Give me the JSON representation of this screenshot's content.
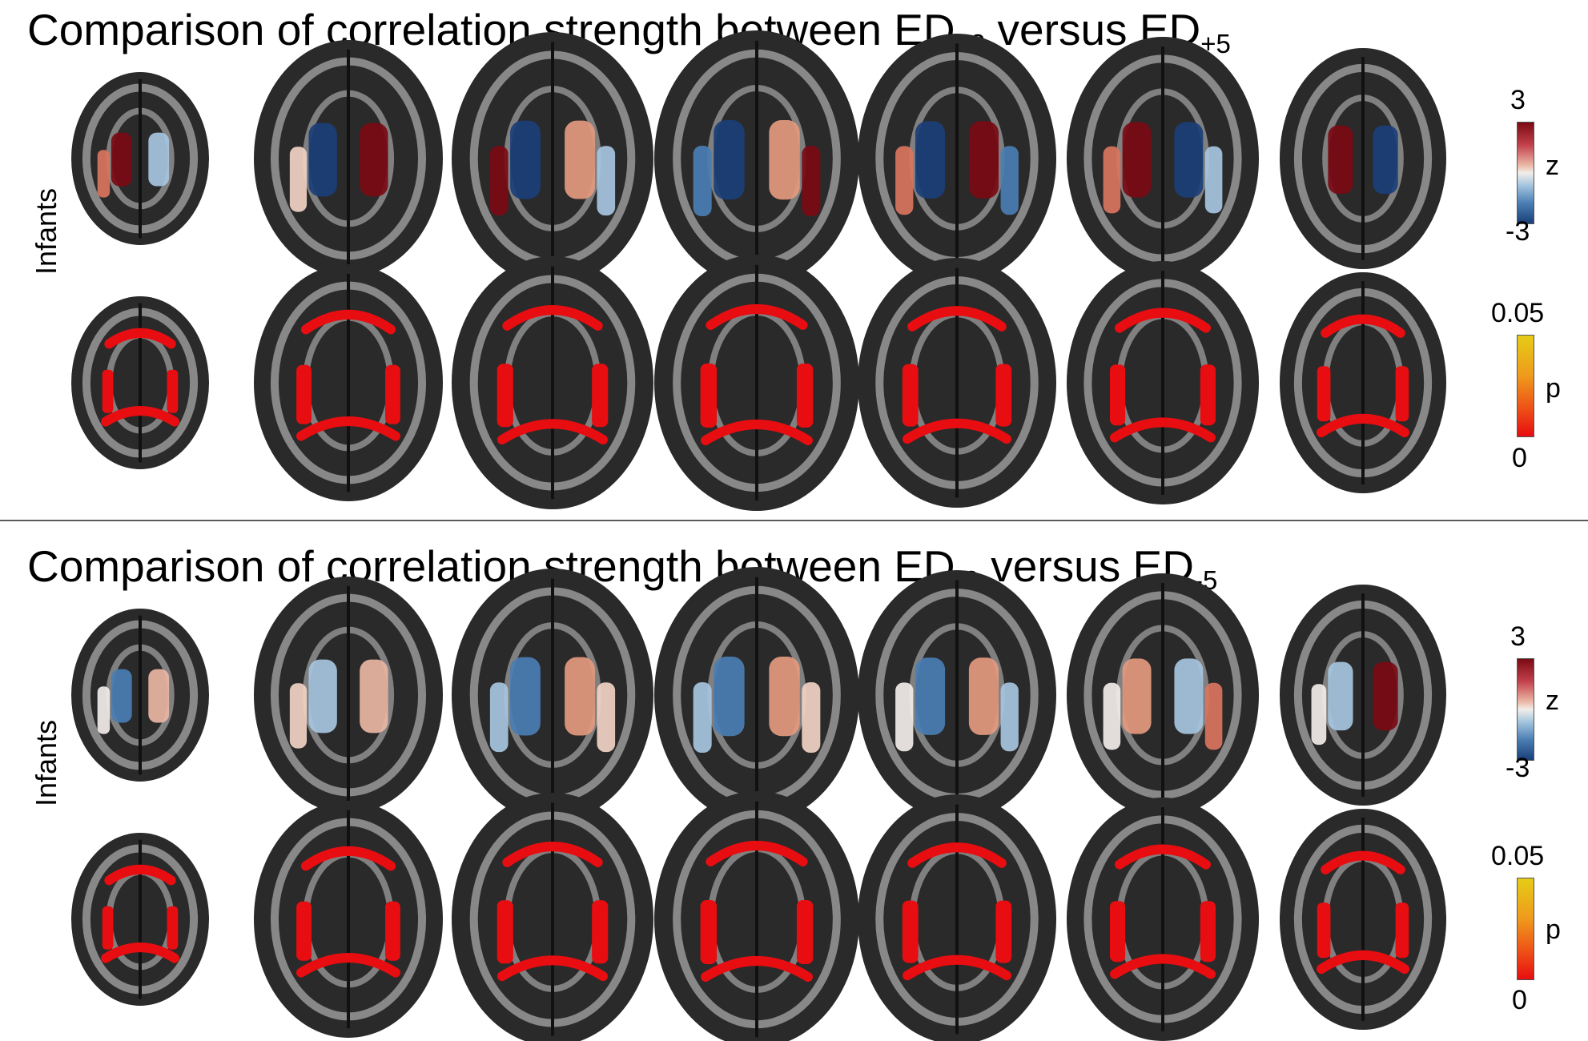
{
  "panels": [
    {
      "title": {
        "prefix": "Comparison of correlation strength between ED",
        "sub1": "+3",
        "middle": " versus ED",
        "sub2": "+5"
      },
      "row_label": "Infants",
      "z_scale": {
        "max": "3",
        "label": "z",
        "min": "-3"
      },
      "p_scale": {
        "max": "0.05",
        "label": "p",
        "min": "0"
      }
    },
    {
      "title": {
        "prefix": "Comparison of correlation strength between ED",
        "sub1": "-3",
        "middle": " versus ED",
        "sub2": "-5"
      },
      "row_label": "Infants",
      "z_scale": {
        "max": "3",
        "label": "z",
        "min": "-3"
      },
      "p_scale": {
        "max": "0.05",
        "label": "p",
        "min": "0"
      }
    }
  ],
  "colors": {
    "z_high": "#7a0a14",
    "z_mid": "#f2ede9",
    "z_low": "#1a3f78",
    "p_high": "#e6cc16",
    "p_low": "#e80d10",
    "brain_bg": "#2a2a2a",
    "white_matter": "#d6d6d6"
  },
  "slices": [
    {
      "rows": [
        {
          "kind": "z",
          "blobs": [
            [
              "#7a0a14",
              "#a6c6df",
              "#d9745e"
            ],
            [
              "#1a3f78",
              "#7a0a14",
              "#f0d2c4"
            ],
            [
              "#1a3f78",
              "#e39a7e",
              "#7a0a14",
              "#a6c6df"
            ],
            [
              "#1a3f78",
              "#e39a7e",
              "#4a7eb3",
              "#7a0a14"
            ],
            [
              "#1a3f78",
              "#7a0a14",
              "#d9745e",
              "#4a7eb3"
            ],
            [
              "#7a0a14",
              "#1a3f78",
              "#d9745e",
              "#a6c6df"
            ],
            [
              "#7a0a14",
              "#1a3f78"
            ]
          ]
        },
        {
          "kind": "p",
          "blobs": [
            [
              "#e80d10"
            ],
            [
              "#e80d10"
            ],
            [
              "#e80d10"
            ],
            [
              "#e80d10"
            ],
            [
              "#e80d10"
            ],
            [
              "#e80d10"
            ],
            [
              "#e80d10"
            ]
          ]
        }
      ]
    },
    {
      "rows": [
        {
          "kind": "z",
          "blobs": [
            [
              "#4a7eb3",
              "#eab6a4",
              "#f2ede9"
            ],
            [
              "#a6c6df",
              "#eab6a4",
              "#f0d2c4"
            ],
            [
              "#4a7eb3",
              "#e39a7e",
              "#a6c6df",
              "#f0d2c4"
            ],
            [
              "#4a7eb3",
              "#e39a7e",
              "#a6c6df",
              "#f0d2c4"
            ],
            [
              "#4a7eb3",
              "#e39a7e",
              "#f2ede9",
              "#a6c6df"
            ],
            [
              "#e39a7e",
              "#a6c6df",
              "#f2ede9",
              "#d9745e"
            ],
            [
              "#a6c6df",
              "#7a0a14",
              "#f2ede9"
            ]
          ]
        },
        {
          "kind": "p",
          "blobs": [
            [
              "#e80d10"
            ],
            [
              "#e80d10"
            ],
            [
              "#e80d10"
            ],
            [
              "#e80d10"
            ],
            [
              "#e80d10"
            ],
            [
              "#e80d10"
            ],
            [
              "#e80d10"
            ]
          ]
        }
      ]
    }
  ]
}
